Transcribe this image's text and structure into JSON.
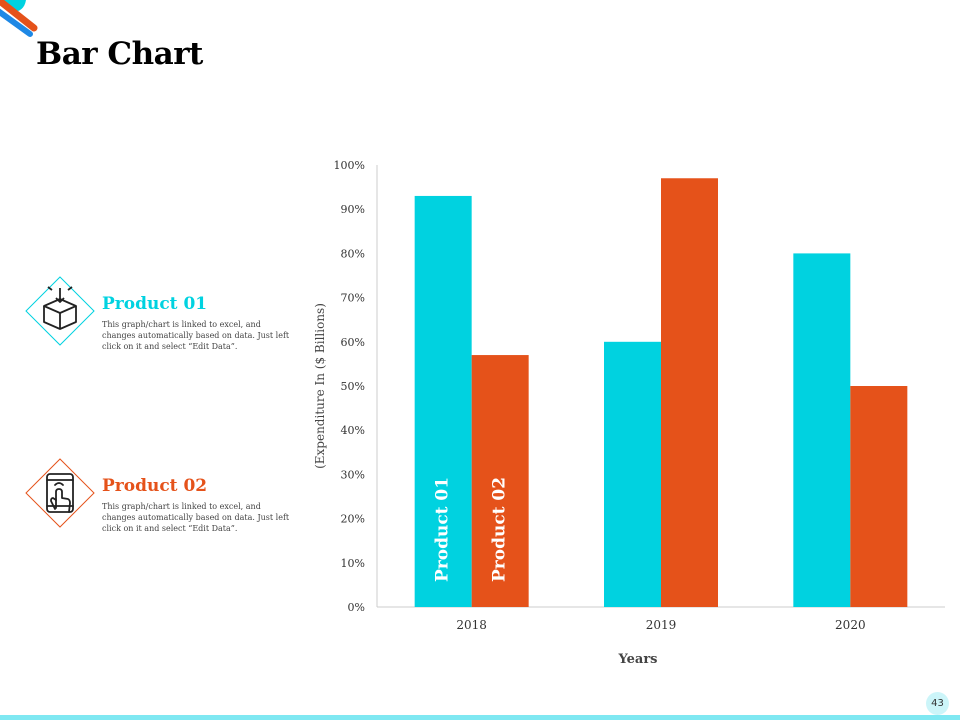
{
  "page": {
    "title": "Bar Chart",
    "page_number": "43"
  },
  "colors": {
    "product1": "#00D2E0",
    "product2": "#E5521A",
    "footer": "#7FE8F2",
    "badge": "#CCF5F9",
    "deco_orange": "#E5521A",
    "deco_blue": "#1E88E5",
    "deco_cyan": "#00D2E0"
  },
  "legend": [
    {
      "name": "Product 01",
      "description": "This graph/chart is linked to excel, and changes automatically based on data. Just left click on it and select “Edit Data”.",
      "icon": "box-icon"
    },
    {
      "name": "Product 02",
      "description": "This graph/chart is linked to excel, and changes automatically based on data. Just left click on it and select “Edit Data”.",
      "icon": "touchscreen-icon"
    }
  ],
  "chart_data": {
    "type": "bar",
    "title": "Bar Chart",
    "xlabel": "Years",
    "ylabel": "(Expenditure In ($ Billions)",
    "categories": [
      "2018",
      "2019",
      "2020"
    ],
    "series": [
      {
        "name": "Product 01",
        "values": [
          93,
          60,
          80
        ]
      },
      {
        "name": "Product 02",
        "values": [
          57,
          97,
          50
        ]
      }
    ],
    "ylim": [
      0,
      100
    ],
    "yticks": [
      0,
      10,
      20,
      30,
      40,
      50,
      60,
      70,
      80,
      90,
      100
    ],
    "ytick_suffix": "%",
    "grid": false,
    "legend": "in-bar labels on first category"
  }
}
